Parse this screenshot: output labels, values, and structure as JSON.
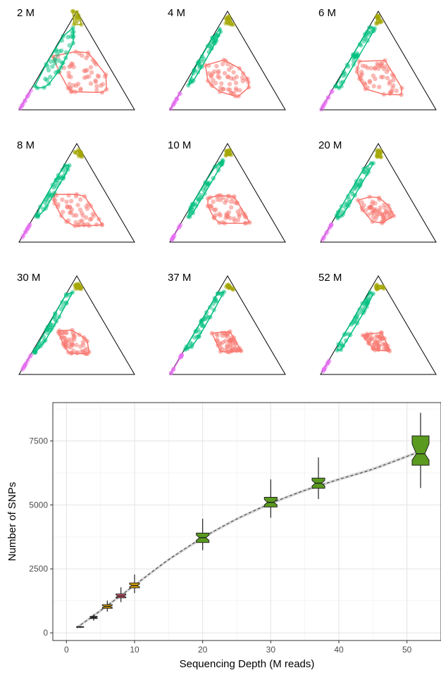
{
  "colors": {
    "red": "#F8766D",
    "olive": "#A3A500",
    "teal": "#00BF7D",
    "magenta": "#E76BF3",
    "box_small": "#3a3a3a",
    "box_mid_a": "#D8A000",
    "box_mid_b": "#D35466",
    "box_large": "#5A9A1E"
  },
  "chart_data": [
    {
      "type": "ternary-scatter",
      "panels": [
        {
          "label": "2 M"
        },
        {
          "label": "4 M"
        },
        {
          "label": "6 M"
        },
        {
          "label": "8 M"
        },
        {
          "label": "10 M"
        },
        {
          "label": "20 M"
        },
        {
          "label": "30 M"
        },
        {
          "label": "37 M"
        },
        {
          "label": "52 M"
        }
      ]
    },
    {
      "type": "box",
      "xlabel": "Sequencing Depth (M reads)",
      "ylabel": "Number of SNPs",
      "xlim": [
        -2,
        55
      ],
      "ylim": [
        -300,
        9000
      ],
      "xticks": [
        0,
        10,
        20,
        30,
        40,
        50
      ],
      "yticks": [
        0,
        2500,
        5000,
        7500
      ],
      "boxes": [
        {
          "x": 2,
          "min": 190,
          "q1": 215,
          "median": 230,
          "q3": 245,
          "max": 270
        },
        {
          "x": 4,
          "min": 480,
          "q1": 560,
          "median": 600,
          "q3": 640,
          "max": 720
        },
        {
          "x": 6,
          "min": 830,
          "q1": 960,
          "median": 1030,
          "q3": 1100,
          "max": 1260
        },
        {
          "x": 8,
          "min": 1200,
          "q1": 1370,
          "median": 1440,
          "q3": 1520,
          "max": 1780
        },
        {
          "x": 10,
          "min": 1550,
          "q1": 1760,
          "median": 1850,
          "q3": 1950,
          "max": 2280
        },
        {
          "x": 20,
          "min": 3230,
          "q1": 3530,
          "median": 3720,
          "q3": 3900,
          "max": 4460
        },
        {
          "x": 30,
          "min": 4500,
          "q1": 4920,
          "median": 5100,
          "q3": 5300,
          "max": 6000
        },
        {
          "x": 37,
          "min": 5230,
          "q1": 5650,
          "median": 5850,
          "q3": 6050,
          "max": 6860
        },
        {
          "x": 52,
          "min": 5660,
          "q1": 6550,
          "median": 7000,
          "q3": 7700,
          "max": 8600
        }
      ],
      "fit_curve": {
        "x": [
          1.5,
          5,
          10,
          15,
          20,
          25,
          30,
          35,
          40,
          45,
          52
        ],
        "y": [
          200,
          870,
          1860,
          2860,
          3720,
          4450,
          5060,
          5570,
          6000,
          6400,
          7100
        ]
      }
    }
  ]
}
